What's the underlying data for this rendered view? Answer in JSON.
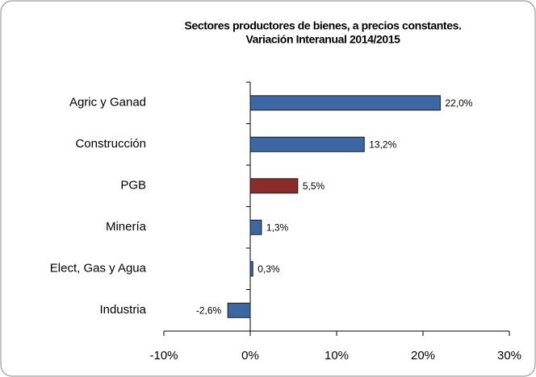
{
  "chart_data": {
    "type": "bar",
    "orientation": "horizontal",
    "title": "Sectores productores de bienes, a precios constantes.",
    "subtitle": "Variación Interanual 2014/2015",
    "categories": [
      "Agric y Ganad",
      "Construcción",
      "PGB",
      "Minería",
      "Elect, Gas y Agua",
      "Industria"
    ],
    "values": [
      22.0,
      13.2,
      5.5,
      1.3,
      0.3,
      -2.6
    ],
    "value_labels": [
      "22,0%",
      "13,2%",
      "5,5%",
      "1,3%",
      "0,3%",
      "-2,6%"
    ],
    "colors": [
      "#3d67a3",
      "#3d67a3",
      "#8c2b2b",
      "#3d67a3",
      "#3d67a3",
      "#3d67a3"
    ],
    "xlim": [
      -10,
      30
    ],
    "xticks": [
      {
        "value": -10,
        "label": "-10%"
      },
      {
        "value": 0,
        "label": "0%"
      },
      {
        "value": 10,
        "label": "10%"
      },
      {
        "value": 20,
        "label": "20%"
      },
      {
        "value": 30,
        "label": "30%"
      }
    ],
    "grid": false
  }
}
